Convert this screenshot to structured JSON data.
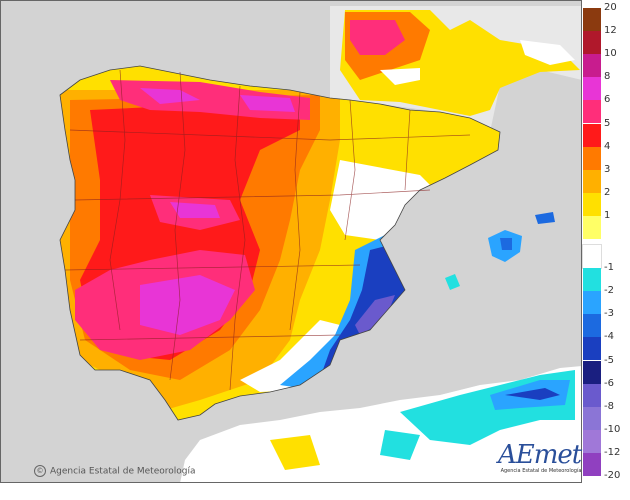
{
  "map": {
    "credit": "Agencia Estatal de Meteorología",
    "logo": {
      "brand": "AEmet",
      "subtitle": "Agencia Estatal de Meteorología"
    }
  },
  "legend": {
    "items": [
      {
        "label": "20",
        "color": "#8b3a0f"
      },
      {
        "label": "12",
        "color": "#b0182b"
      },
      {
        "label": "10",
        "color": "#c81c8e"
      },
      {
        "label": "8",
        "color": "#e835d6"
      },
      {
        "label": "6",
        "color": "#ff2e7a"
      },
      {
        "label": "5",
        "color": "#ff1a1a"
      },
      {
        "label": "4",
        "color": "#ff7a00"
      },
      {
        "label": "3",
        "color": "#ffb000"
      },
      {
        "label": "2",
        "color": "#ffe000"
      },
      {
        "label": "1",
        "color": "#ffff66"
      },
      {
        "label": "-1",
        "color": "#ffffff"
      },
      {
        "label": "-2",
        "color": "#22e0e0"
      },
      {
        "label": "-3",
        "color": "#2aa4ff"
      },
      {
        "label": "-4",
        "color": "#1c6ae0"
      },
      {
        "label": "-5",
        "color": "#1a3fc0"
      },
      {
        "label": "-6",
        "color": "#1a1f80"
      },
      {
        "label": "-8",
        "color": "#6a5acd"
      },
      {
        "label": "-10",
        "color": "#8b75d6"
      },
      {
        "label": "-12",
        "color": "#a078d8"
      },
      {
        "label": "-20",
        "color": "#9040c0"
      }
    ]
  }
}
